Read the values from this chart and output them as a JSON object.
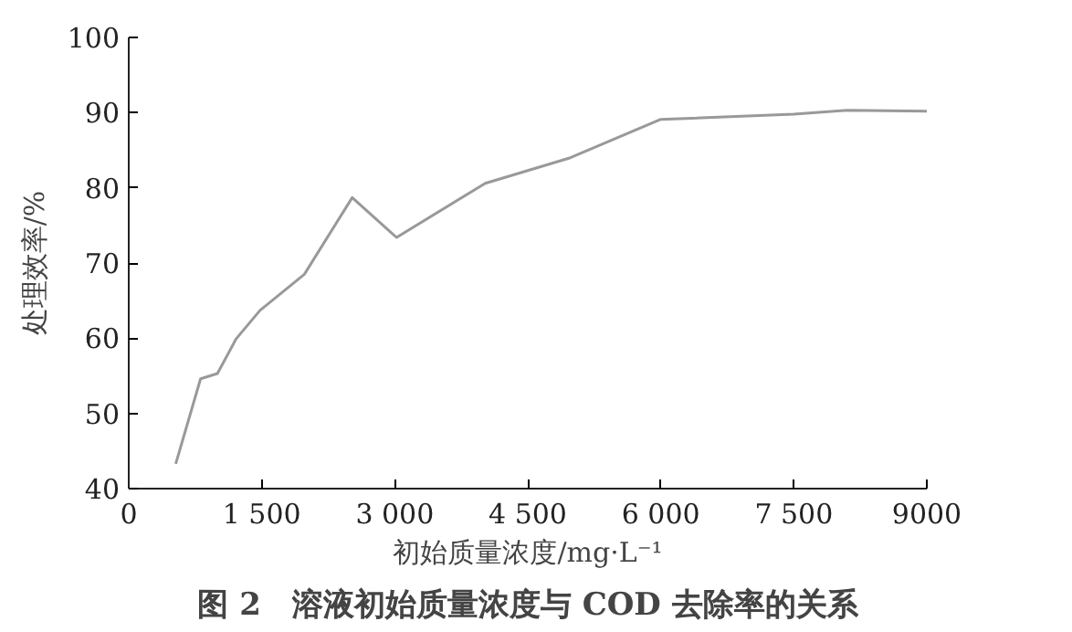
{
  "chart_data": {
    "type": "line",
    "title": "图 2　溶液初始质量浓度与 COD 去除率的关系",
    "xlabel": "初始质量浓度/mg·L⁻¹",
    "ylabel": "处理效率/%",
    "x": [
      530,
      810,
      1000,
      1210,
      1480,
      1980,
      2520,
      3020,
      4020,
      4980,
      6000,
      7500,
      8100,
      9000
    ],
    "series": [
      {
        "color": "#999999",
        "values": [
          43.3,
          54.6,
          55.3,
          59.9,
          63.7,
          68.5,
          78.7,
          73.4,
          80.6,
          84.0,
          89.1,
          89.8,
          90.3,
          90.2
        ]
      }
    ],
    "xlim": [
      0,
      9000
    ],
    "ylim": [
      40,
      100
    ],
    "xticks": [
      0,
      {
        "value": 1500,
        "label": "1 500"
      },
      {
        "value": 3000,
        "label": "3 000"
      },
      {
        "value": 4500,
        "label": "4 500"
      },
      {
        "value": 6000,
        "label": "6 000"
      },
      {
        "value": 7500,
        "label": "7 500"
      },
      9000
    ],
    "yticks": [
      40,
      50,
      60,
      70,
      80,
      90,
      100
    ],
    "grid": false,
    "marker": "none",
    "line_style": "solid"
  }
}
